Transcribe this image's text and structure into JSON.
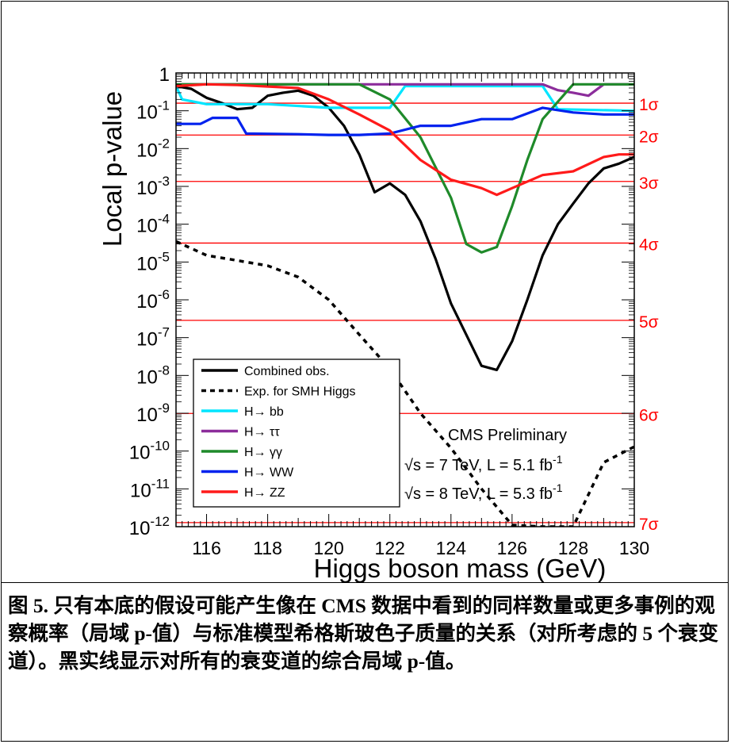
{
  "chart_data": {
    "type": "line",
    "xlabel": "Higgs boson mass (GeV)",
    "ylabel": "Local p-value",
    "xlim": [
      115,
      130
    ],
    "ylim": [
      1e-12,
      1
    ],
    "yscale": "log",
    "x_ticks": [
      "116",
      "118",
      "120",
      "122",
      "124",
      "126",
      "128",
      "130"
    ],
    "y_ticks": [
      {
        "base": "1",
        "exp": ""
      },
      {
        "base": "10",
        "exp": "-1"
      },
      {
        "base": "10",
        "exp": "-2"
      },
      {
        "base": "10",
        "exp": "-3"
      },
      {
        "base": "10",
        "exp": "-4"
      },
      {
        "base": "10",
        "exp": "-5"
      },
      {
        "base": "10",
        "exp": "-6"
      },
      {
        "base": "10",
        "exp": "-7"
      },
      {
        "base": "10",
        "exp": "-8"
      },
      {
        "base": "10",
        "exp": "-9"
      },
      {
        "base": "10",
        "exp": "-10"
      },
      {
        "base": "10",
        "exp": "-11"
      },
      {
        "base": "10",
        "exp": "-12"
      }
    ],
    "sigma_lines": [
      {
        "label": "1σ",
        "p": 0.159
      },
      {
        "label": "2σ",
        "p": 0.0228
      },
      {
        "label": "3σ",
        "p": 0.00135
      },
      {
        "label": "4σ",
        "p": 3.17e-05
      },
      {
        "label": "5σ",
        "p": 2.87e-07
      },
      {
        "label": "6σ",
        "p": 9.87e-10
      },
      {
        "label": "7σ",
        "p": 1.28e-12
      }
    ],
    "series": [
      {
        "name": "Combined obs.",
        "color": "#000000",
        "dashed": false,
        "points": [
          [
            115,
            0.45
          ],
          [
            115.5,
            0.38
          ],
          [
            116,
            0.22
          ],
          [
            116.5,
            0.16
          ],
          [
            117,
            0.11
          ],
          [
            117.5,
            0.12
          ],
          [
            118,
            0.25
          ],
          [
            118.5,
            0.3
          ],
          [
            119,
            0.34
          ],
          [
            119.5,
            0.25
          ],
          [
            120,
            0.12
          ],
          [
            120.5,
            0.04
          ],
          [
            121,
            0.007
          ],
          [
            121.5,
            0.0007
          ],
          [
            122,
            0.0012
          ],
          [
            122.5,
            0.0006
          ],
          [
            123,
            0.00012
          ],
          [
            123.5,
            1.2e-05
          ],
          [
            124,
            8e-07
          ],
          [
            124.5,
            1.2e-07
          ],
          [
            125,
            1.8e-08
          ],
          [
            125.5,
            1.4e-08
          ],
          [
            126,
            8e-08
          ],
          [
            126.5,
            1e-06
          ],
          [
            127,
            1.5e-05
          ],
          [
            127.5,
            0.0001
          ],
          [
            128,
            0.00035
          ],
          [
            128.5,
            0.0012
          ],
          [
            129,
            0.003
          ],
          [
            129.5,
            0.004
          ],
          [
            130,
            0.006
          ]
        ]
      },
      {
        "name": "Exp. for SMH Higgs",
        "color": "#000000",
        "dashed": true,
        "points": [
          [
            115,
            3.5e-05
          ],
          [
            116,
            1.5e-05
          ],
          [
            117,
            1.1e-05
          ],
          [
            118,
            8e-06
          ],
          [
            119,
            4e-06
          ],
          [
            120,
            1e-06
          ],
          [
            121,
            1.2e-07
          ],
          [
            122,
            1.5e-08
          ],
          [
            123,
            1e-09
          ],
          [
            124,
            1.2e-10
          ],
          [
            125,
            1e-11
          ],
          [
            126,
            1.1e-12
          ],
          [
            127,
            1e-12
          ],
          [
            128,
            1e-12
          ],
          [
            129,
            5e-11
          ],
          [
            130,
            1.3e-10
          ]
        ]
      },
      {
        "name": "H → bb",
        "color": "#00e5ff",
        "dashed": false,
        "points": [
          [
            115,
            0.45
          ],
          [
            115.2,
            0.2
          ],
          [
            116,
            0.15
          ],
          [
            118,
            0.15
          ],
          [
            120,
            0.12
          ],
          [
            122,
            0.12
          ],
          [
            122.5,
            0.45
          ],
          [
            127,
            0.45
          ],
          [
            127.5,
            0.11
          ],
          [
            130,
            0.1
          ]
        ]
      },
      {
        "name": "H → ττ",
        "color": "#8c2d9b",
        "dashed": false,
        "points": [
          [
            115,
            0.5
          ],
          [
            127,
            0.5
          ],
          [
            127.5,
            0.35
          ],
          [
            128,
            0.3
          ],
          [
            128.5,
            0.25
          ],
          [
            129,
            0.5
          ],
          [
            130,
            0.5
          ]
        ]
      },
      {
        "name": "H → γγ",
        "color": "#1f8a2a",
        "dashed": false,
        "points": [
          [
            115,
            0.5
          ],
          [
            121,
            0.5
          ],
          [
            122,
            0.2
          ],
          [
            123,
            0.02
          ],
          [
            124,
            0.0005
          ],
          [
            124.5,
            3e-05
          ],
          [
            125,
            1.8e-05
          ],
          [
            125.5,
            2.5e-05
          ],
          [
            126,
            0.0003
          ],
          [
            126.5,
            0.005
          ],
          [
            127,
            0.06
          ],
          [
            128,
            0.5
          ],
          [
            130,
            0.5
          ]
        ]
      },
      {
        "name": "H → WW",
        "color": "#0022ee",
        "dashed": false,
        "points": [
          [
            115,
            0.045
          ],
          [
            115.8,
            0.045
          ],
          [
            116.2,
            0.065
          ],
          [
            117,
            0.065
          ],
          [
            117.3,
            0.025
          ],
          [
            119,
            0.024
          ],
          [
            120,
            0.023
          ],
          [
            121,
            0.023
          ],
          [
            122,
            0.025
          ],
          [
            123,
            0.04
          ],
          [
            124,
            0.04
          ],
          [
            125,
            0.06
          ],
          [
            126,
            0.06
          ],
          [
            127,
            0.12
          ],
          [
            128,
            0.09
          ],
          [
            129,
            0.08
          ],
          [
            130,
            0.08
          ]
        ]
      },
      {
        "name": "H → ZZ",
        "color": "#ff1a1a",
        "dashed": false,
        "points": [
          [
            115,
            0.45
          ],
          [
            116,
            0.5
          ],
          [
            117,
            0.48
          ],
          [
            119,
            0.4
          ],
          [
            120,
            0.2
          ],
          [
            121,
            0.08
          ],
          [
            122,
            0.03
          ],
          [
            123,
            0.005
          ],
          [
            124,
            0.0015
          ],
          [
            125,
            0.0009
          ],
          [
            125.5,
            0.0006
          ],
          [
            126,
            0.0009
          ],
          [
            127,
            0.002
          ],
          [
            128,
            0.0025
          ],
          [
            129,
            0.006
          ],
          [
            129.5,
            0.007
          ],
          [
            130,
            0.007
          ]
        ]
      }
    ],
    "legend": [
      {
        "label": "Combined obs.",
        "color": "#000000",
        "dashed": false
      },
      {
        "label": "Exp. for SMH Higgs",
        "color": "#000000",
        "dashed": true
      },
      {
        "label": "H→ bb",
        "color": "#00e5ff",
        "dashed": false
      },
      {
        "label": "H→ ττ",
        "color": "#8c2d9b",
        "dashed": false
      },
      {
        "label": "H→ γγ",
        "color": "#1f8a2a",
        "dashed": false
      },
      {
        "label": "H→ WW",
        "color": "#0022ee",
        "dashed": false
      },
      {
        "label": "H→ ZZ",
        "color": "#ff1a1a",
        "dashed": false
      }
    ],
    "legend_position": "bottom-left",
    "annotations": {
      "experiment": "CMS Preliminary",
      "lumi1_pre": "√s = 7 TeV, L = 5.1 fb",
      "lumi1_sup": "-1",
      "lumi2_pre": "√s = 8 TeV, L = 5.3 fb",
      "lumi2_sup": "-1"
    },
    "sigma_color": "#ff0000"
  },
  "caption": {
    "text": "图 5. 只有本底的假设可能产生像在 CMS 数据中看到的同样数量或更多事例的观察概率（局域 p-值）与标准模型希格斯玻色子质量的关系（对所考虑的 5 个衰变道）。黑实线显示对所有的衰变道的综合局域 p-值。"
  }
}
